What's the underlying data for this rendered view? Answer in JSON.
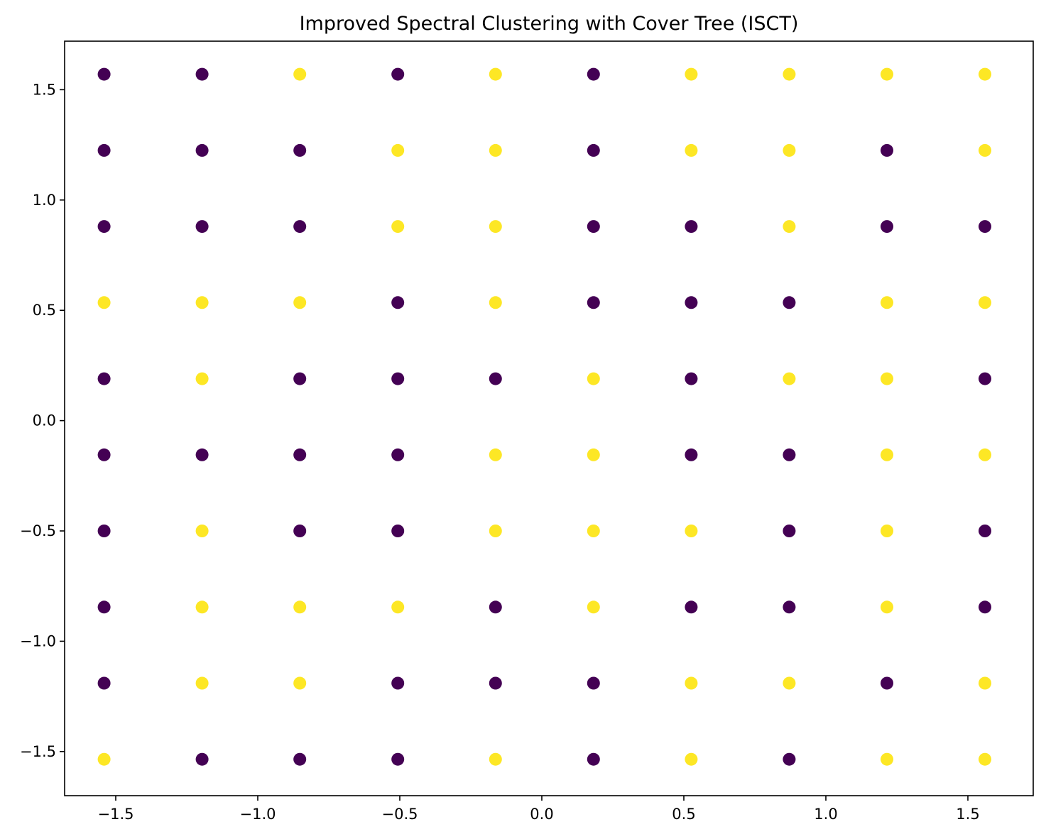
{
  "chart_data": {
    "type": "scatter",
    "title": "Improved Spectral Clustering with Cover Tree (ISCT)",
    "xlabel": "",
    "ylabel": "",
    "xlim": [
      -1.68,
      1.73
    ],
    "ylim": [
      -1.7,
      1.72
    ],
    "grid": false,
    "legend": "none",
    "x_ticks": [
      -1.5,
      -1.0,
      -0.5,
      0.0,
      0.5,
      1.0,
      1.5
    ],
    "x_tick_labels": [
      "−1.5",
      "−1.0",
      "−0.5",
      "0.0",
      "0.5",
      "1.0",
      "1.5"
    ],
    "y_ticks": [
      1.5,
      1.0,
      0.5,
      0.0,
      -0.5,
      -1.0,
      -1.5
    ],
    "y_tick_labels": [
      "1.5",
      "1.0",
      "0.5",
      "0.0",
      "−0.5",
      "−1.0",
      "−1.5"
    ],
    "colors": {
      "0": "#440154",
      "1": "#fde725"
    },
    "x_values": [
      -1.541,
      -1.196,
      -0.852,
      -0.507,
      -0.163,
      0.182,
      0.526,
      0.871,
      1.215,
      1.56
    ],
    "y_values": [
      1.57,
      1.225,
      0.88,
      0.535,
      0.19,
      -0.155,
      -0.5,
      -0.845,
      -1.19,
      -1.535
    ],
    "labels": [
      [
        0,
        0,
        1,
        0,
        1,
        0,
        1,
        1,
        1,
        1
      ],
      [
        0,
        0,
        0,
        1,
        1,
        0,
        1,
        1,
        0,
        1
      ],
      [
        0,
        0,
        0,
        1,
        1,
        0,
        0,
        1,
        0,
        0
      ],
      [
        1,
        1,
        1,
        0,
        1,
        0,
        0,
        0,
        1,
        1
      ],
      [
        0,
        1,
        0,
        0,
        0,
        1,
        0,
        1,
        1,
        0
      ],
      [
        0,
        0,
        0,
        0,
        1,
        1,
        0,
        0,
        1,
        1
      ],
      [
        0,
        1,
        0,
        0,
        1,
        1,
        1,
        0,
        1,
        0
      ],
      [
        0,
        1,
        1,
        1,
        0,
        1,
        0,
        0,
        1,
        0
      ],
      [
        0,
        1,
        1,
        0,
        0,
        0,
        1,
        1,
        0,
        1
      ],
      [
        1,
        0,
        0,
        0,
        1,
        0,
        1,
        0,
        1,
        1
      ]
    ]
  }
}
